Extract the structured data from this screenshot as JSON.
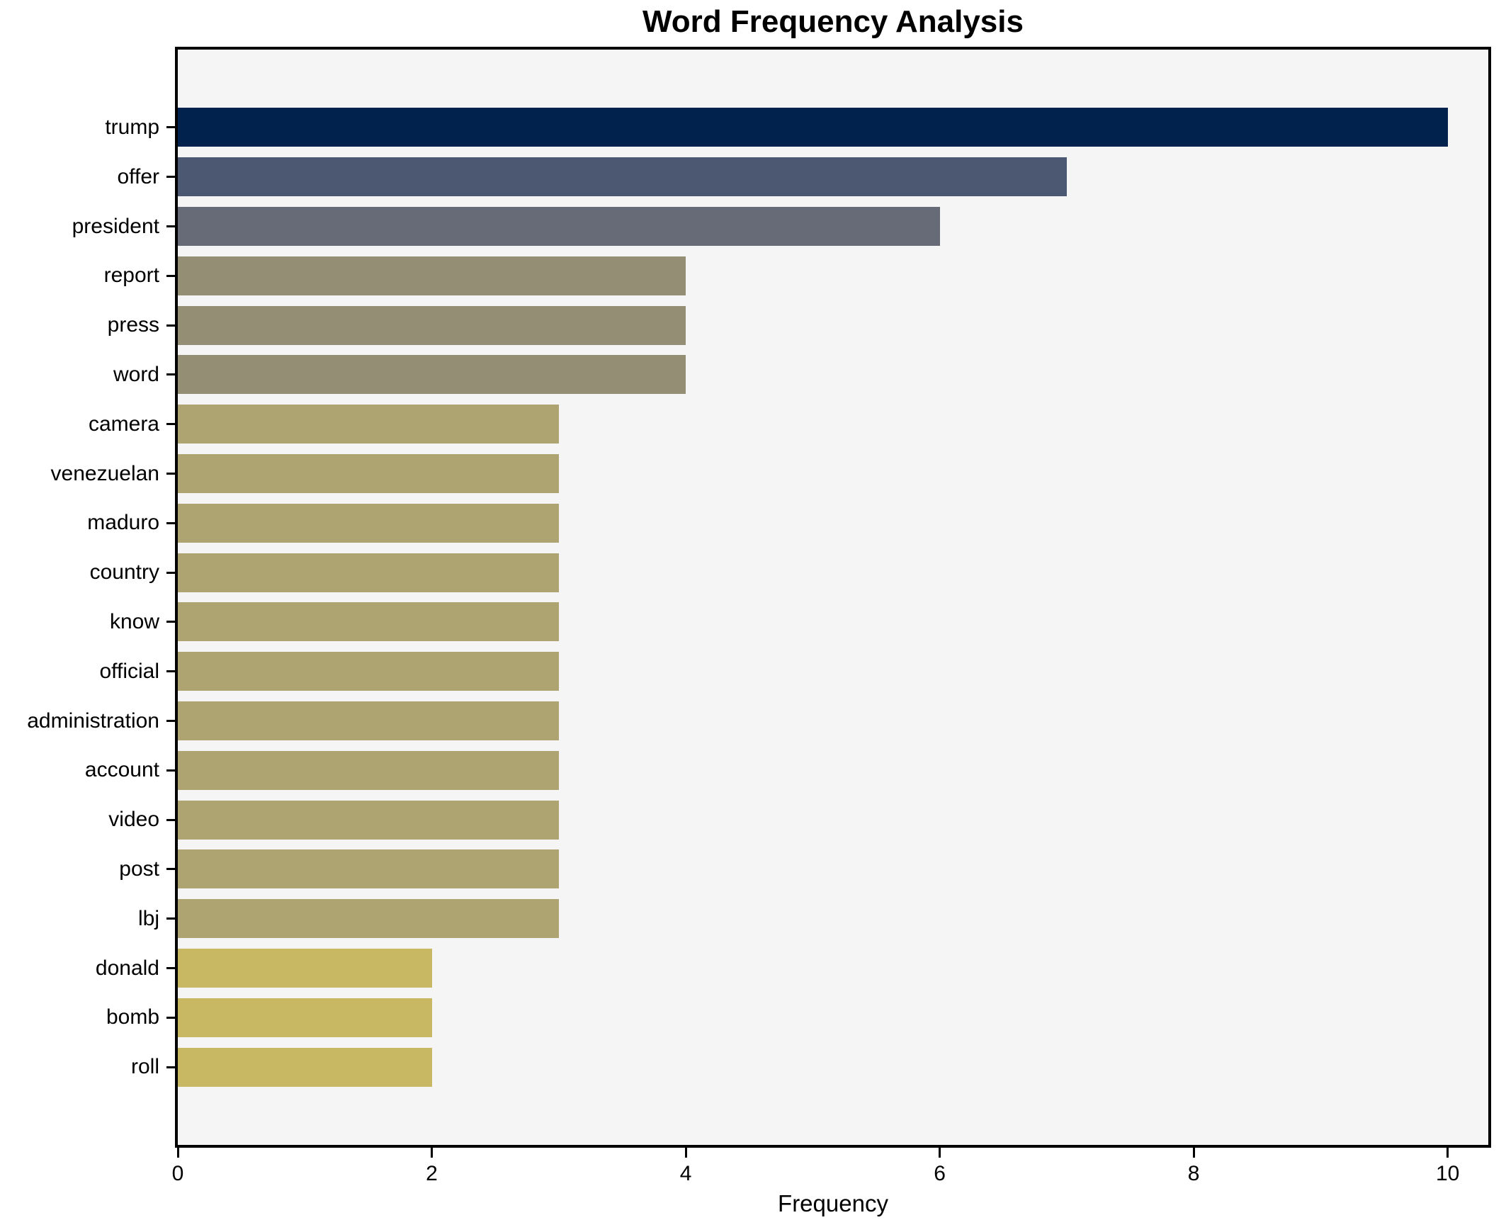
{
  "chart_data": {
    "type": "bar",
    "orientation": "horizontal",
    "title": "Word Frequency Analysis",
    "xlabel": "Frequency",
    "ylabel": "",
    "categories": [
      "trump",
      "offer",
      "president",
      "report",
      "press",
      "word",
      "camera",
      "venezuelan",
      "maduro",
      "country",
      "know",
      "official",
      "administration",
      "account",
      "video",
      "post",
      "lbj",
      "donald",
      "bomb",
      "roll"
    ],
    "values": [
      10,
      7,
      6,
      4,
      4,
      4,
      3,
      3,
      3,
      3,
      3,
      3,
      3,
      3,
      3,
      3,
      3,
      2,
      2,
      2
    ],
    "bar_colors": [
      "#01224d",
      "#4c5871",
      "#666b77",
      "#938e74",
      "#938e74",
      "#938e74",
      "#ada471",
      "#ada471",
      "#ada471",
      "#ada471",
      "#ada471",
      "#ada471",
      "#ada471",
      "#ada471",
      "#ada471",
      "#ada471",
      "#ada471",
      "#c9b863",
      "#c9b863",
      "#c9b863"
    ],
    "xlim": [
      0,
      10.32
    ],
    "x_ticks": [
      0,
      2,
      4,
      6,
      8,
      10
    ],
    "grid": false,
    "legend_position": "none",
    "plot_background": "#f5f5f6",
    "figure_background": "#ffffff",
    "spine_color": "#000000"
  }
}
